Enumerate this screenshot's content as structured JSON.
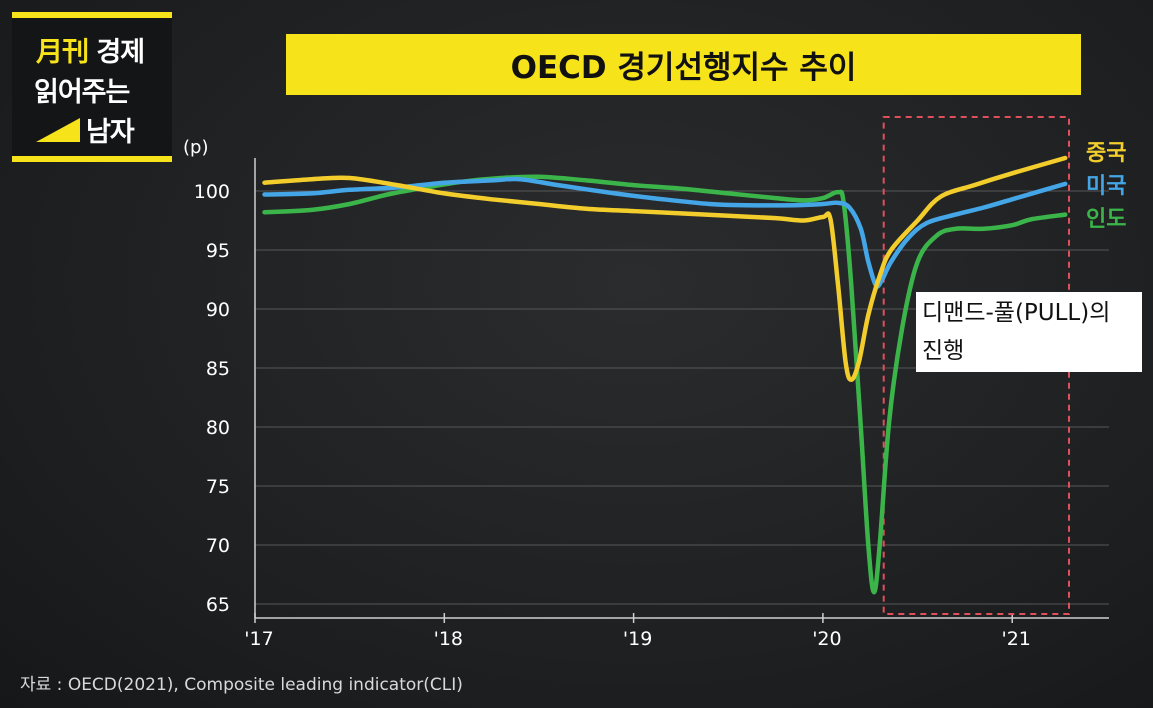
{
  "logo": {
    "line1_accent": "月刊",
    "line1_rest": " 경제",
    "line2": "읽어주는",
    "line3": "남자"
  },
  "title": "OECD 경기선행지수 추이",
  "annotation": {
    "line1": "디맨드-풀(PULL)의",
    "line2": "진행"
  },
  "source": "자료 : OECD(2021), Composite leading indicator(CLI)",
  "chart_data": {
    "type": "line",
    "ylabel": "(p)",
    "ylim": [
      64,
      103
    ],
    "yticks": [
      65,
      70,
      75,
      80,
      85,
      90,
      95,
      100
    ],
    "xticks": [
      {
        "label": "'17",
        "value": 2017
      },
      {
        "label": "'18",
        "value": 2018
      },
      {
        "label": "'19",
        "value": 2019
      },
      {
        "label": "'20",
        "value": 2020
      },
      {
        "label": "'21",
        "value": 2021
      }
    ],
    "xlim": [
      2017,
      2021.3
    ],
    "grid": true,
    "legend_position": "right",
    "highlight_range": [
      2020.3,
      2021.3
    ],
    "series": [
      {
        "name": "중국",
        "color": "#f2cd2c",
        "points": [
          [
            2017.05,
            100.7
          ],
          [
            2017.3,
            101.0
          ],
          [
            2017.5,
            101.1
          ],
          [
            2017.75,
            100.5
          ],
          [
            2018.0,
            99.8
          ],
          [
            2018.25,
            99.3
          ],
          [
            2018.5,
            98.9
          ],
          [
            2018.75,
            98.5
          ],
          [
            2019.0,
            98.3
          ],
          [
            2019.25,
            98.1
          ],
          [
            2019.5,
            97.9
          ],
          [
            2019.75,
            97.7
          ],
          [
            2019.9,
            97.5
          ],
          [
            2020.0,
            97.8
          ],
          [
            2020.04,
            97.6
          ],
          [
            2020.08,
            92.0
          ],
          [
            2020.12,
            85.5
          ],
          [
            2020.15,
            84.0
          ],
          [
            2020.19,
            85.5
          ],
          [
            2020.24,
            89.5
          ],
          [
            2020.3,
            92.8
          ],
          [
            2020.36,
            95.0
          ],
          [
            2020.5,
            97.5
          ],
          [
            2020.62,
            99.5
          ],
          [
            2020.8,
            100.5
          ],
          [
            2021.0,
            101.5
          ],
          [
            2021.28,
            102.8
          ]
        ]
      },
      {
        "name": "미국",
        "color": "#44a6e6",
        "points": [
          [
            2017.05,
            99.7
          ],
          [
            2017.3,
            99.8
          ],
          [
            2017.5,
            100.1
          ],
          [
            2017.75,
            100.3
          ],
          [
            2018.0,
            100.7
          ],
          [
            2018.25,
            100.9
          ],
          [
            2018.4,
            101.0
          ],
          [
            2018.6,
            100.5
          ],
          [
            2018.9,
            99.8
          ],
          [
            2019.1,
            99.4
          ],
          [
            2019.4,
            98.9
          ],
          [
            2019.6,
            98.8
          ],
          [
            2019.85,
            98.8
          ],
          [
            2020.0,
            98.9
          ],
          [
            2020.08,
            99.0
          ],
          [
            2020.14,
            98.6
          ],
          [
            2020.2,
            96.8
          ],
          [
            2020.24,
            94.0
          ],
          [
            2020.28,
            92.0
          ],
          [
            2020.31,
            92.4
          ],
          [
            2020.36,
            94.0
          ],
          [
            2020.45,
            96.0
          ],
          [
            2020.55,
            97.3
          ],
          [
            2020.7,
            98.0
          ],
          [
            2020.85,
            98.6
          ],
          [
            2021.0,
            99.3
          ],
          [
            2021.28,
            100.6
          ]
        ]
      },
      {
        "name": "인도",
        "color": "#3bb54a",
        "points": [
          [
            2017.05,
            98.2
          ],
          [
            2017.3,
            98.4
          ],
          [
            2017.5,
            98.9
          ],
          [
            2017.7,
            99.7
          ],
          [
            2017.9,
            100.3
          ],
          [
            2018.1,
            100.8
          ],
          [
            2018.3,
            101.1
          ],
          [
            2018.5,
            101.2
          ],
          [
            2018.75,
            100.9
          ],
          [
            2019.0,
            100.5
          ],
          [
            2019.25,
            100.2
          ],
          [
            2019.5,
            99.8
          ],
          [
            2019.75,
            99.4
          ],
          [
            2019.9,
            99.2
          ],
          [
            2020.0,
            99.4
          ],
          [
            2020.08,
            99.9
          ],
          [
            2020.11,
            99.0
          ],
          [
            2020.15,
            92.0
          ],
          [
            2020.2,
            80.0
          ],
          [
            2020.24,
            70.0
          ],
          [
            2020.27,
            66.0
          ],
          [
            2020.3,
            70.0
          ],
          [
            2020.35,
            80.5
          ],
          [
            2020.42,
            88.5
          ],
          [
            2020.5,
            94.0
          ],
          [
            2020.6,
            96.2
          ],
          [
            2020.7,
            96.8
          ],
          [
            2020.85,
            96.8
          ],
          [
            2021.0,
            97.1
          ],
          [
            2021.1,
            97.6
          ],
          [
            2021.28,
            98.0
          ]
        ]
      }
    ]
  }
}
